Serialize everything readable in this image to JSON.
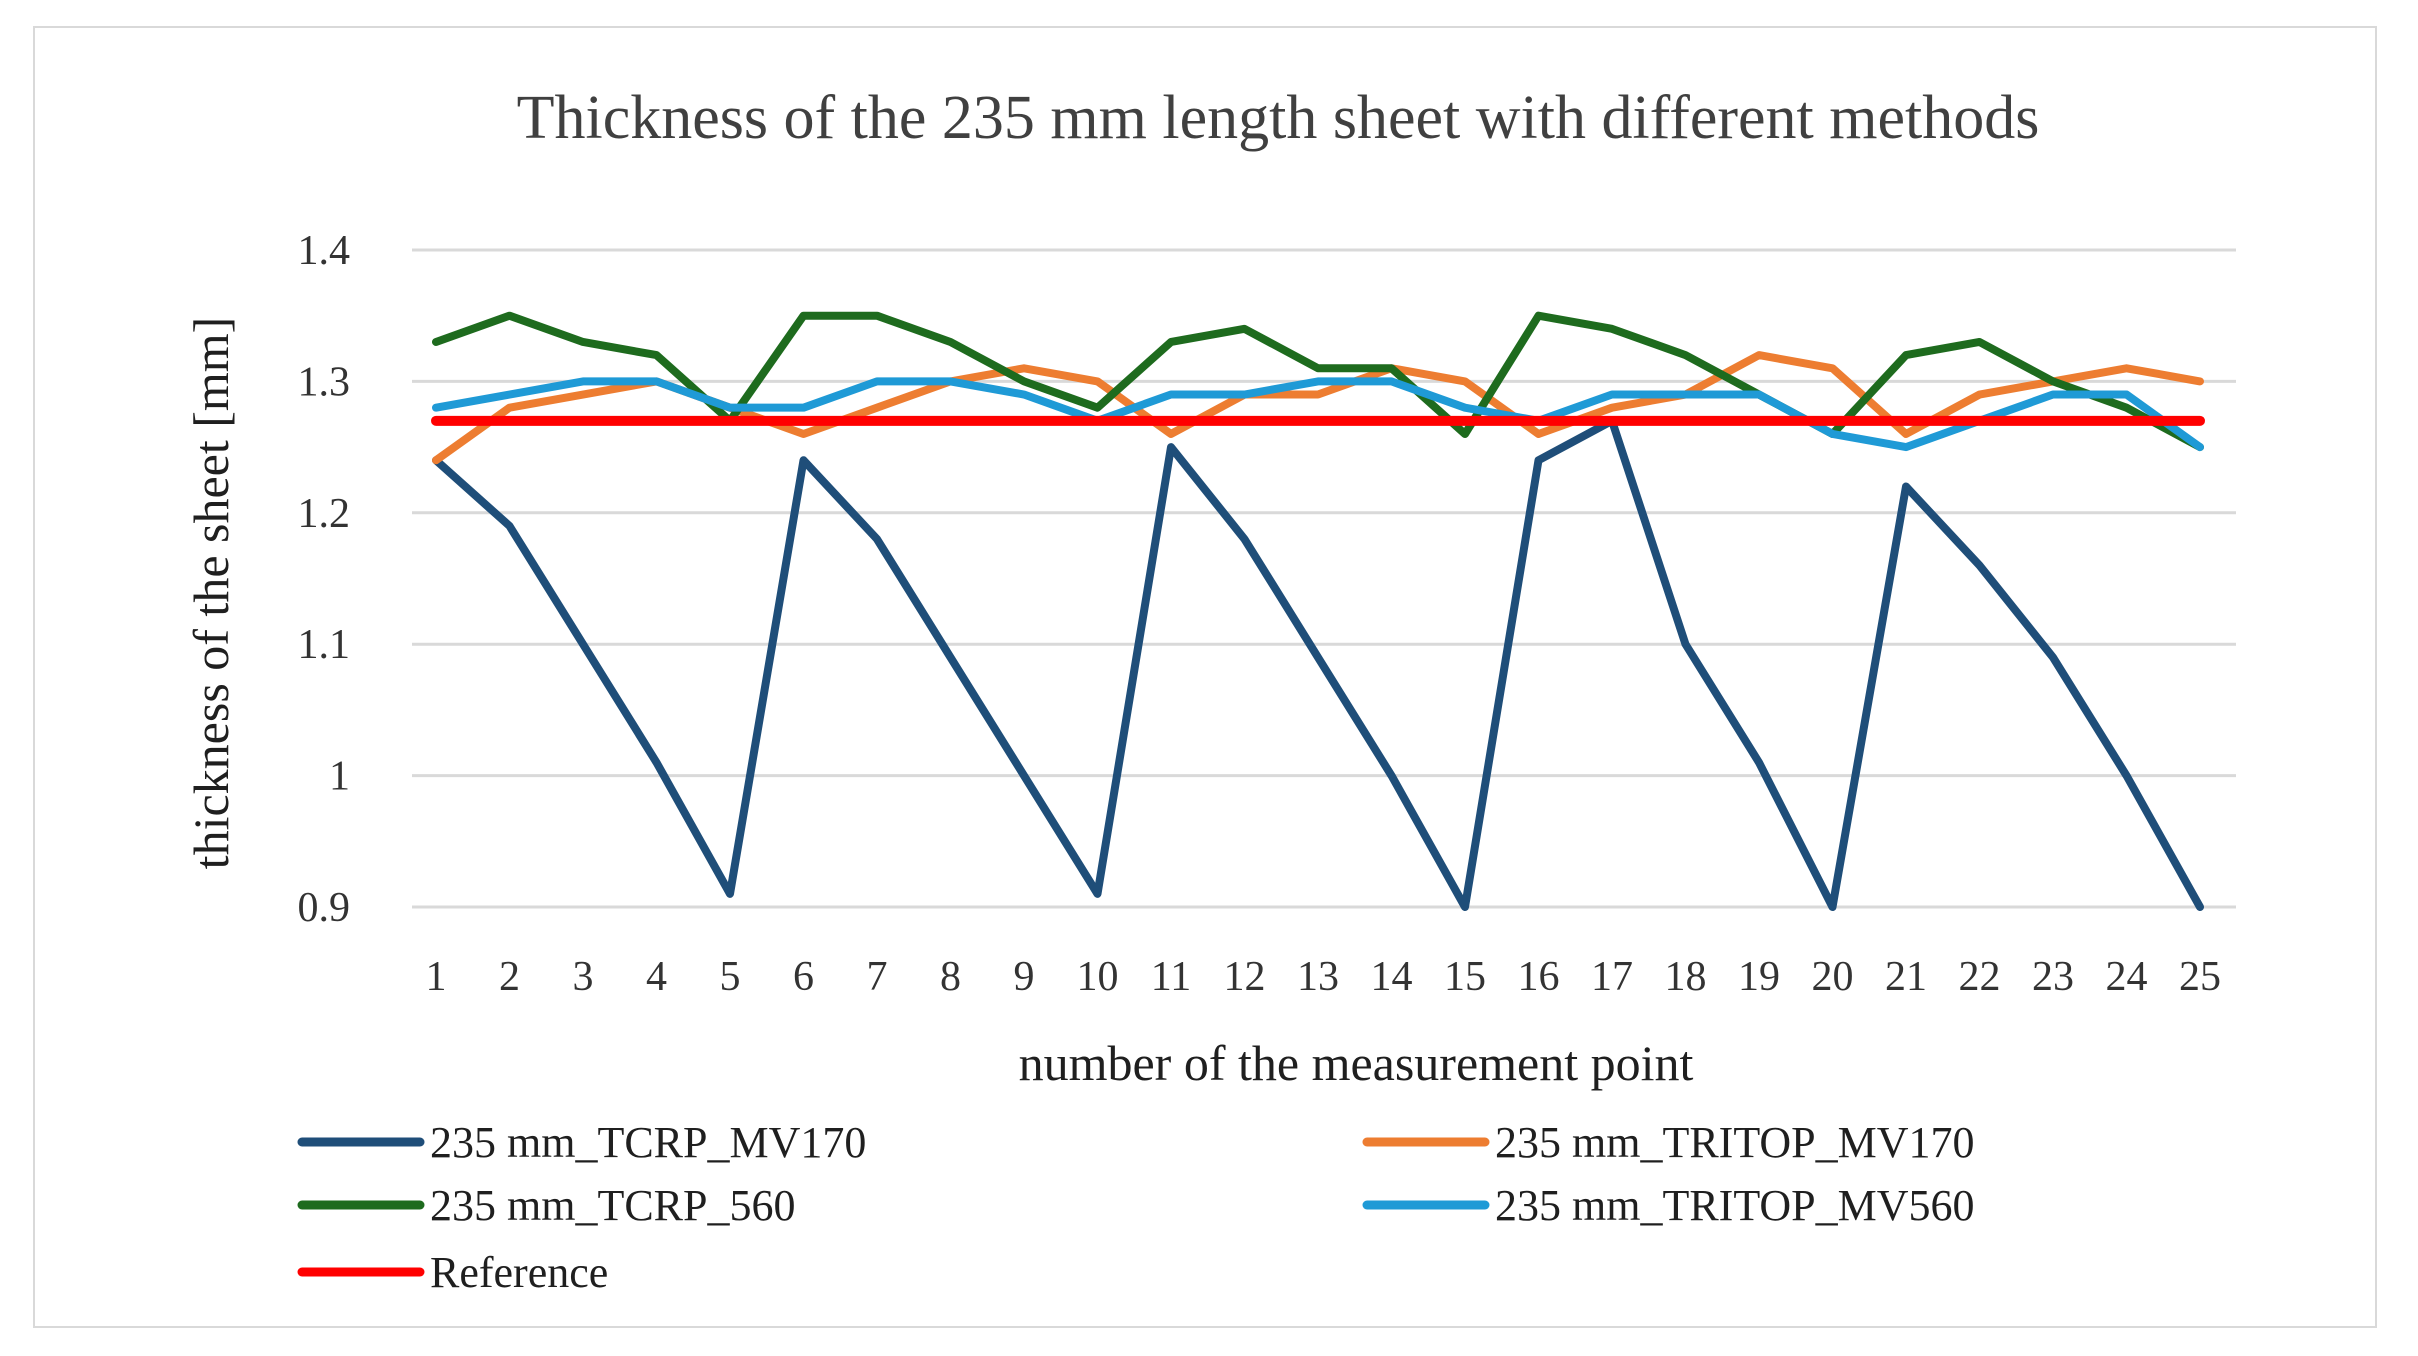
{
  "chart_data": {
    "type": "line",
    "title": "Thickness of the 235 mm length sheet with different methods",
    "xlabel": "number of the measurement point",
    "ylabel": "thickness of the sheet [mm]",
    "ylim": [
      0.9,
      1.4
    ],
    "yticks": [
      0.9,
      1,
      1.1,
      1.2,
      1.3,
      1.4
    ],
    "ytick_labels": [
      "0.9",
      "1",
      "1.1",
      "1.2",
      "1.3",
      "1.4"
    ],
    "grid": true,
    "legend_position": "bottom",
    "categories": [
      "1",
      "2",
      "3",
      "4",
      "5",
      "6",
      "7",
      "8",
      "9",
      "10",
      "11",
      "12",
      "13",
      "14",
      "15",
      "16",
      "17",
      "18",
      "19",
      "20",
      "21",
      "22",
      "23",
      "24",
      "25"
    ],
    "series": [
      {
        "name": "235 mm_TCRP_MV170",
        "color": "#1f4e79",
        "values": [
          1.24,
          1.19,
          1.1,
          1.01,
          0.91,
          1.24,
          1.18,
          1.09,
          1.0,
          0.91,
          1.25,
          1.18,
          1.09,
          1.0,
          0.9,
          1.24,
          1.27,
          1.1,
          1.01,
          0.9,
          1.22,
          1.16,
          1.09,
          1.0,
          0.9
        ]
      },
      {
        "name": "235 mm_TRITOP_MV170",
        "color": "#ed7d31",
        "values": [
          1.24,
          1.28,
          1.29,
          1.3,
          1.28,
          1.26,
          1.28,
          1.3,
          1.31,
          1.3,
          1.26,
          1.29,
          1.29,
          1.31,
          1.3,
          1.26,
          1.28,
          1.29,
          1.32,
          1.31,
          1.26,
          1.29,
          1.3,
          1.31,
          1.3
        ]
      },
      {
        "name": "235 mm_TCRP_560",
        "color": "#1e6b1e",
        "values": [
          1.33,
          1.35,
          1.33,
          1.32,
          1.27,
          1.35,
          1.35,
          1.33,
          1.3,
          1.28,
          1.33,
          1.34,
          1.31,
          1.31,
          1.26,
          1.35,
          1.34,
          1.32,
          1.29,
          1.26,
          1.32,
          1.33,
          1.3,
          1.28,
          1.25
        ]
      },
      {
        "name": "235 mm_TRITOP_MV560",
        "color": "#1f9ad6",
        "values": [
          1.28,
          1.29,
          1.3,
          1.3,
          1.28,
          1.28,
          1.3,
          1.3,
          1.29,
          1.27,
          1.29,
          1.29,
          1.3,
          1.3,
          1.28,
          1.27,
          1.29,
          1.29,
          1.29,
          1.26,
          1.25,
          1.27,
          1.29,
          1.29,
          1.25
        ]
      },
      {
        "name": "Reference",
        "color": "#ff0000",
        "values": [
          1.27,
          1.27,
          1.27,
          1.27,
          1.27,
          1.27,
          1.27,
          1.27,
          1.27,
          1.27,
          1.27,
          1.27,
          1.27,
          1.27,
          1.27,
          1.27,
          1.27,
          1.27,
          1.27,
          1.27,
          1.27,
          1.27,
          1.27,
          1.27,
          1.27
        ]
      }
    ]
  }
}
